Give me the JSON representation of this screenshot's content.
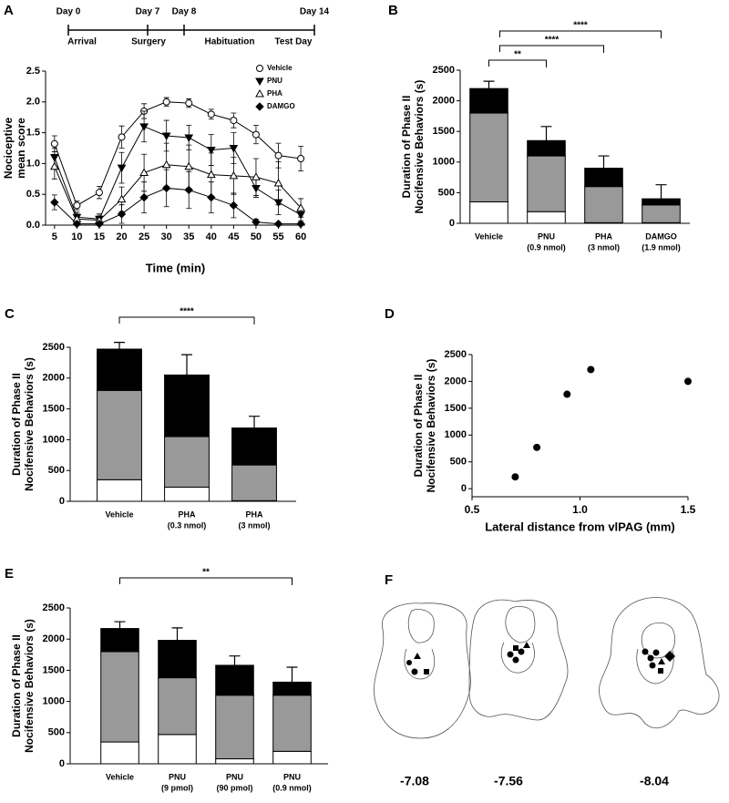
{
  "chart_data": [
    {
      "panel": "A",
      "type": "line",
      "timeline": {
        "days": [
          "Day 0",
          "Day 7",
          "Day 8",
          "Day 14"
        ],
        "phases": [
          "Arrival",
          "Surgery",
          "Habituation",
          "Test Day"
        ]
      },
      "xlabel": "Time (min)",
      "ylabel": [
        "Nociceptive",
        "mean score"
      ],
      "x": [
        5,
        10,
        15,
        20,
        25,
        30,
        35,
        40,
        45,
        50,
        55,
        60
      ],
      "xlim": [
        3,
        61
      ],
      "xticks": [
        5,
        10,
        15,
        20,
        25,
        30,
        35,
        40,
        45,
        50,
        55,
        60
      ],
      "ylim": [
        0,
        2.5
      ],
      "yticks": [
        {
          "value": 0,
          "label": "0.0"
        },
        0.5,
        {
          "value": 1,
          "label": "1.0"
        },
        1.5,
        {
          "value": 2,
          "label": "2.0"
        },
        2.5
      ],
      "legend": "upper right",
      "series": [
        {
          "name": "Vehicle",
          "marker": "circle-open",
          "color": "#000000",
          "values": [
            1.32,
            0.32,
            0.53,
            1.43,
            1.85,
            2.0,
            1.98,
            1.8,
            1.7,
            1.47,
            1.13,
            1.08
          ],
          "errors": [
            0.13,
            0.07,
            0.1,
            0.18,
            0.12,
            0.07,
            0.07,
            0.08,
            0.12,
            0.15,
            0.2,
            0.2
          ]
        },
        {
          "name": "PNU",
          "marker": "triangle-down-filled",
          "color": "#000000",
          "values": [
            1.1,
            0.13,
            0.1,
            0.93,
            1.6,
            1.45,
            1.42,
            1.22,
            1.25,
            0.6,
            0.37,
            0.17
          ],
          "errors": [
            0.15,
            0.08,
            0.08,
            0.25,
            0.25,
            0.25,
            0.2,
            0.25,
            0.25,
            0.15,
            0.2,
            0.1
          ]
        },
        {
          "name": "PHA",
          "marker": "triangle-up-open",
          "color": "#000000",
          "values": [
            0.95,
            0.1,
            0.08,
            0.42,
            0.85,
            0.98,
            0.95,
            0.82,
            0.8,
            0.78,
            0.68,
            0.28
          ],
          "errors": [
            0.2,
            0.08,
            0.07,
            0.2,
            0.3,
            0.35,
            0.35,
            0.35,
            0.3,
            0.3,
            0.35,
            0.15
          ]
        },
        {
          "name": "DAMGO",
          "marker": "diamond-filled",
          "color": "#000000",
          "values": [
            0.37,
            0.02,
            0.02,
            0.18,
            0.45,
            0.6,
            0.57,
            0.45,
            0.32,
            0.05,
            0.02,
            0.02
          ],
          "errors": [
            0.12,
            0.02,
            0.02,
            0.15,
            0.25,
            0.3,
            0.3,
            0.25,
            0.2,
            0.05,
            0.02,
            0.02
          ]
        }
      ]
    },
    {
      "panel": "B",
      "type": "stacked-bar",
      "ylabel": [
        "Duration of Phase II",
        "Nocifensive Behaviors (s)"
      ],
      "categories": [
        "Vehicle",
        "PNU",
        "PHA",
        "DAMGO"
      ],
      "category_notes": [
        null,
        "(0.9 nmol)",
        "(3 nmol)",
        "(1.9 nmol)"
      ],
      "series": [
        {
          "color": "#ffffff",
          "values": [
            350,
            190,
            10,
            10
          ]
        },
        {
          "color": "#999999",
          "values": [
            1450,
            910,
            590,
            290
          ]
        },
        {
          "color": "#000000",
          "values": [
            400,
            250,
            300,
            100
          ]
        }
      ],
      "errors": [
        120,
        230,
        200,
        230
      ],
      "brackets": [
        {
          "between": [
            0,
            1
          ],
          "label": "**"
        },
        {
          "between": [
            0,
            2
          ],
          "label": "****"
        },
        {
          "between": [
            0,
            3
          ],
          "label": "****"
        }
      ],
      "ylim": [
        0,
        2500
      ],
      "yticks": [
        0,
        500,
        1000,
        1500,
        2000,
        2500
      ]
    },
    {
      "panel": "C",
      "type": "stacked-bar",
      "ylabel": [
        "Duration of Phase II",
        "Nocifensive Behaviors (s)"
      ],
      "categories": [
        "Vehicle",
        "PHA",
        "PHA"
      ],
      "category_notes": [
        null,
        "(0.3 nmol)",
        "(3 nmol)"
      ],
      "series": [
        {
          "color": "#ffffff",
          "values": [
            350,
            230,
            10
          ]
        },
        {
          "color": "#999999",
          "values": [
            1450,
            820,
            580
          ]
        },
        {
          "color": "#000000",
          "values": [
            670,
            1000,
            600
          ]
        }
      ],
      "errors": [
        110,
        330,
        190
      ],
      "brackets": [
        {
          "between": [
            0,
            2
          ],
          "label": "****"
        }
      ],
      "ylim": [
        0,
        2500
      ],
      "yticks": [
        0,
        500,
        1000,
        1500,
        2000,
        2500
      ]
    },
    {
      "panel": "D",
      "type": "scatter",
      "ylabel": [
        "Duration of Phase II",
        "Nocifensive Behaviors (s)"
      ],
      "xlabel": "Lateral distance from vlPAG (mm)",
      "x": [
        0.7,
        0.8,
        0.94,
        1.05,
        1.5
      ],
      "values": [
        220,
        770,
        1760,
        2220,
        2000
      ],
      "color": "#000000",
      "xlim": [
        0.5,
        1.5
      ],
      "xticks": [
        0.5,
        {
          "value": 1,
          "label": "1.0"
        },
        1.5
      ],
      "ylim": [
        -150,
        2500
      ],
      "yticks": [
        0,
        500,
        1000,
        1500,
        2000,
        2500
      ]
    },
    {
      "panel": "E",
      "type": "stacked-bar",
      "ylabel": [
        "Duration of Phase II",
        "Nocifensive Behaviors (s)"
      ],
      "categories": [
        "Vehicle",
        "PNU",
        "PNU",
        "PNU"
      ],
      "category_notes": [
        null,
        "(9 pmol)",
        "(90 pmol)",
        "(0.9 nmol)"
      ],
      "series": [
        {
          "color": "#ffffff",
          "values": [
            350,
            470,
            80,
            200
          ]
        },
        {
          "color": "#999999",
          "values": [
            1450,
            910,
            1020,
            900
          ]
        },
        {
          "color": "#000000",
          "values": [
            370,
            600,
            480,
            210
          ]
        }
      ],
      "errors": [
        110,
        200,
        150,
        240
      ],
      "brackets": [
        {
          "between": [
            0,
            3
          ],
          "label": "**"
        }
      ],
      "ylim": [
        0,
        2500
      ],
      "yticks": [
        0,
        500,
        1000,
        1500,
        2000,
        2500
      ]
    },
    {
      "panel": "F",
      "type": "diagram",
      "labels": [
        "-7.08",
        "-7.56",
        "-8.04"
      ]
    }
  ]
}
